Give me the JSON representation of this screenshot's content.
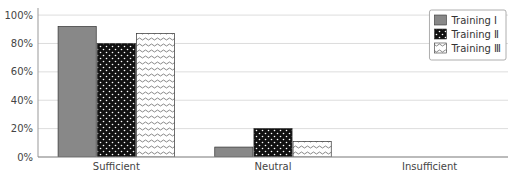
{
  "chart_data": {
    "type": "bar",
    "categories": [
      "Sufficient",
      "Neutral",
      "Insufficient"
    ],
    "series": [
      {
        "name": "Training I",
        "color": "#888888",
        "values": [
          0.92,
          0.07,
          0.0
        ]
      },
      {
        "name": "Training Ⅱ",
        "color": "#111111",
        "values": [
          0.8,
          0.2,
          0.0
        ]
      },
      {
        "name": "Training Ⅲ",
        "color": "#ffffff",
        "values": [
          0.87,
          0.11,
          0.0
        ]
      }
    ],
    "ylim": [
      0,
      1.05
    ],
    "yticks": [
      {
        "value": 0.0,
        "label": "0%"
      },
      {
        "value": 0.2,
        "label": "20%"
      },
      {
        "value": 0.4,
        "label": "40%"
      },
      {
        "value": 0.6,
        "label": "60%"
      },
      {
        "value": 0.8,
        "label": "80%"
      },
      {
        "value": 1.0,
        "label": "100%"
      }
    ],
    "grid": true,
    "legend": "upper right"
  }
}
